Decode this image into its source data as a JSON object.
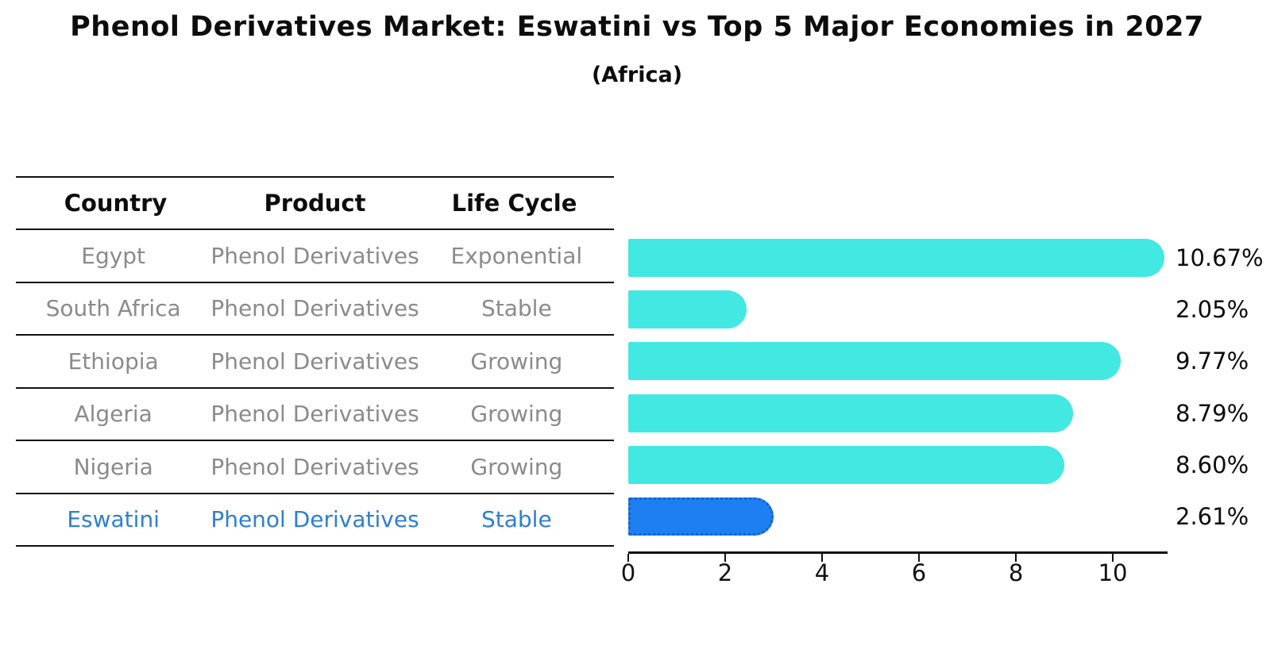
{
  "header": {
    "title": "Phenol Derivatives Market: Eswatini vs Top 5 Major Economies in 2027",
    "subtitle": "(Africa)"
  },
  "table": {
    "columns": [
      "Country",
      "Product",
      "Life Cycle"
    ],
    "rows": [
      {
        "country": "Egypt",
        "product": "Phenol Derivatives",
        "life_cycle": "Exponential",
        "highlight": false
      },
      {
        "country": "South Africa",
        "product": "Phenol Derivatives",
        "life_cycle": "Stable",
        "highlight": false
      },
      {
        "country": "Ethiopia",
        "product": "Phenol Derivatives",
        "life_cycle": "Growing",
        "highlight": false
      },
      {
        "country": "Algeria",
        "product": "Phenol Derivatives",
        "life_cycle": "Growing",
        "highlight": false
      },
      {
        "country": "Nigeria",
        "product": "Phenol Derivatives",
        "life_cycle": "Growing",
        "highlight": false
      },
      {
        "country": "Eswatini",
        "product": "Phenol Derivatives",
        "life_cycle": "Stable",
        "highlight": true
      }
    ]
  },
  "chart_data": {
    "type": "bar",
    "orientation": "horizontal",
    "title": "Phenol Derivatives Market: Eswatini vs Top 5 Major Economies in 2027 (Africa)",
    "categories": [
      "Egypt",
      "South Africa",
      "Ethiopia",
      "Algeria",
      "Nigeria",
      "Eswatini"
    ],
    "values": [
      10.67,
      2.05,
      9.77,
      8.79,
      8.6,
      2.61
    ],
    "value_labels": [
      "10.67%",
      "2.05%",
      "9.77%",
      "8.79%",
      "8.60%",
      "2.61%"
    ],
    "unit": "percent",
    "xlim": [
      0,
      11.13
    ],
    "x_ticks": [
      0,
      2,
      4,
      6,
      8,
      10
    ],
    "grid": false,
    "legend": false,
    "bar_color": "#42e8e2",
    "highlight_bar_color": "#1e7ff2",
    "highlight_bar_border_color": "#1563cc",
    "highlight_text_color": "#2e7fd0",
    "highlight_index": 5
  }
}
